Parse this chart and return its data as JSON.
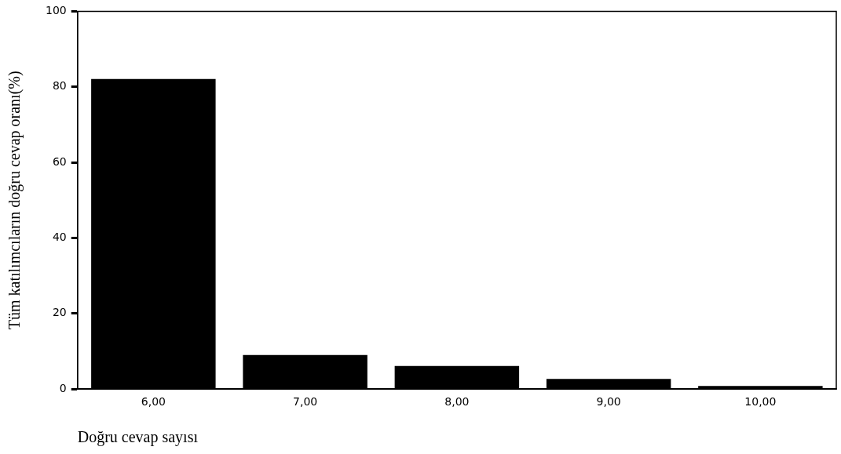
{
  "chart_data": {
    "type": "bar",
    "xlabel": "Doğru cevap sayısı",
    "ylabel": "Tüm katılımcıların doğru cevap oranı(%)",
    "categories": [
      "6,00",
      "7,00",
      "8,00",
      "9,00",
      "10,00"
    ],
    "values": [
      82.1,
      9.0,
      6.1,
      2.7,
      0.8
    ],
    "color": "#000000",
    "ylim": [
      0,
      100
    ],
    "yticks": [
      0,
      20,
      40,
      60,
      80,
      100
    ],
    "grid": false,
    "legend": false
  }
}
